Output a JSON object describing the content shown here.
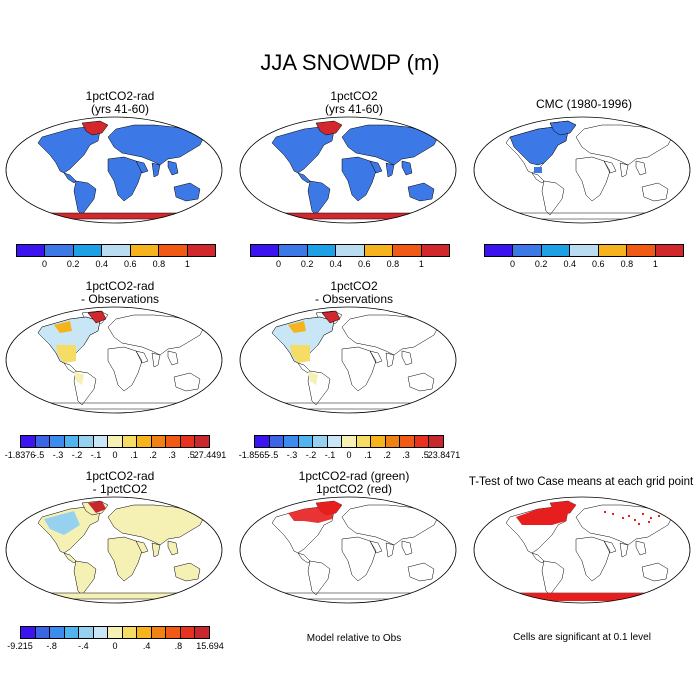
{
  "title": "JJA SNOWDP (m)",
  "panels": {
    "p1": {
      "line1": "1pctCO2-rad",
      "line2": "(yrs 41-60)"
    },
    "p2": {
      "line1": "1pctCO2",
      "line2": "(yrs 41-60)"
    },
    "p3": {
      "line1": "CMC (1980-1996)"
    },
    "p4": {
      "line1": "1pctCO2-rad",
      "line2": "- Observations"
    },
    "p5": {
      "line1": "1pctCO2",
      "line2": "- Observations"
    },
    "p7": {
      "line1": "1pctCO2-rad",
      "line2": "- 1pctCO2"
    },
    "p8": {
      "line1": "1pctCO2-rad (green)",
      "line2": "1pctCO2 (red)"
    },
    "p9": {
      "line1": "T-Test of two Case means at each grid point"
    }
  },
  "colorbars": {
    "abs": {
      "colors": [
        "#3c14f0",
        "#3c78e6",
        "#1ea0e6",
        "#b9dcf0",
        "#f5b41e",
        "#f05a14",
        "#d2282d"
      ],
      "labels": [
        "0",
        "0.2",
        "0.4",
        "0.6",
        "0.8",
        "1"
      ]
    },
    "obs1": {
      "colors": [
        "#3c14f0",
        "#3c64e6",
        "#3c8cf0",
        "#50b4f0",
        "#96d2f0",
        "#c8e6f5",
        "#f5f0b4",
        "#f5dc64",
        "#f5b41e",
        "#f08214",
        "#f05a14",
        "#e6321e",
        "#c8282d"
      ],
      "labels": [
        "-1.8376",
        "-.5",
        "-.3",
        "-.2",
        "-.1",
        "0",
        ".1",
        ".2",
        ".3",
        ".5",
        "27.4491"
      ]
    },
    "obs2": {
      "colors": [
        "#3c14f0",
        "#3c64e6",
        "#3c8cf0",
        "#50b4f0",
        "#96d2f0",
        "#c8e6f5",
        "#f5f0b4",
        "#f5dc64",
        "#f5b41e",
        "#f08214",
        "#f05a14",
        "#e6321e",
        "#c8282d"
      ],
      "labels": [
        "-1.8565",
        "-.5",
        "-.3",
        "-.2",
        "-.1",
        "0",
        ".1",
        ".2",
        ".3",
        ".5",
        "23.8471"
      ]
    },
    "diff": {
      "colors": [
        "#3c14f0",
        "#3c64e6",
        "#3c8cf0",
        "#50b4f0",
        "#96d2f0",
        "#c8e6f5",
        "#f5f0b4",
        "#f5dc64",
        "#f5b41e",
        "#f08214",
        "#f05a14",
        "#e6321e",
        "#c8282d"
      ],
      "labels": [
        "-9.215",
        "-.8",
        "-.4",
        "0",
        ".4",
        ".8",
        "15.694"
      ]
    }
  },
  "notes": {
    "model_rel": "Model relative to Obs",
    "significant": "Cells are significant at 0.1 level"
  },
  "map_colors": {
    "land_blue": "#3c78e6",
    "antarctica_red": "#d2282d",
    "diff_yellow": "#f5f0b4",
    "sig_red": "#e61e1e"
  }
}
